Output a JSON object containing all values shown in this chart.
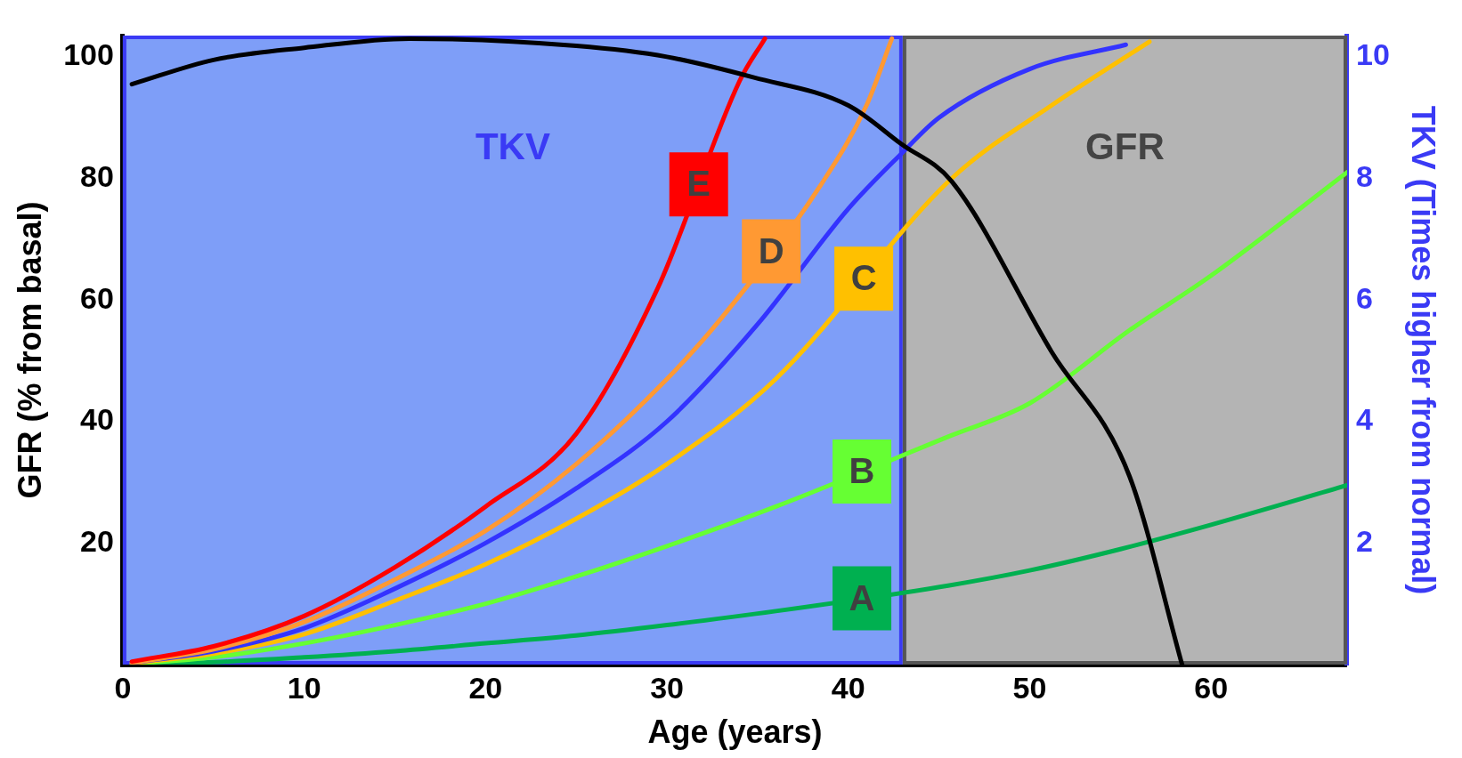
{
  "chart_data": {
    "type": "line",
    "xlabel": "Age (years)",
    "ylabel": "GFR (% from basal)",
    "y2label": "TKV (Times higher from normal)",
    "xlim": [
      0,
      67.5
    ],
    "xticks": [
      0,
      10,
      20,
      30,
      40,
      50,
      60
    ],
    "ylim": [
      0,
      103.5
    ],
    "yticks": [
      20,
      40,
      60,
      80,
      100
    ],
    "y2lim": [
      0,
      10.35
    ],
    "y2ticks": [
      2,
      4,
      6,
      8,
      10
    ],
    "legend": false,
    "marker": "none",
    "line_style": "solid",
    "bands": [
      {
        "axis": "x",
        "from": 0,
        "to": 43,
        "label": "TKV",
        "color": "#7e9ef8"
      },
      {
        "axis": "x",
        "from": 43,
        "to": 67.5,
        "label": "GFR",
        "color": "#b4b4b4"
      }
    ],
    "series": [
      {
        "color": "#000000",
        "x": [
          0.5,
          5,
          10,
          15.8,
          25,
          30,
          34.8,
          40,
          42.9,
          45.7,
          51.2,
          55.5,
          58.4
        ],
        "values": [
          95.5,
          99.5,
          101.5,
          103,
          101.8,
          100,
          96.6,
          92,
          85.7,
          79.5,
          51.5,
          31,
          0
        ]
      },
      {
        "name": "E",
        "color": "#ff0000",
        "axis": "y2",
        "x": [
          0.5,
          5,
          10,
          15,
          20,
          25,
          29.5,
          34,
          35.4
        ],
        "values": [
          0.05,
          0.3,
          0.8,
          1.6,
          2.6,
          3.8,
          6.2,
          9.6,
          10.3
        ]
      },
      {
        "name": "D",
        "color": "#ff9933",
        "axis": "y2",
        "x": [
          0.5,
          5,
          10,
          15,
          20,
          25,
          30,
          33,
          38.5,
          41,
          42.4
        ],
        "values": [
          0.03,
          0.25,
          0.7,
          1.4,
          2.2,
          3.3,
          4.7,
          5.7,
          7.9,
          9.2,
          10.3
        ]
      },
      {
        "color": "#3333ff",
        "axis": "y2",
        "x": [
          0.5,
          5,
          10,
          15,
          20,
          25,
          30,
          35,
          40,
          42.9,
          45,
          50,
          55.3
        ],
        "values": [
          0.03,
          0.22,
          0.6,
          1.25,
          2.0,
          2.9,
          4.0,
          5.6,
          7.5,
          8.4,
          9.0,
          9.8,
          10.2
        ]
      },
      {
        "name": "C",
        "color": "#ffc000",
        "axis": "y2",
        "x": [
          0.5,
          5,
          10,
          15,
          20,
          25,
          30,
          36,
          45.7,
          51.2,
          56.6
        ],
        "values": [
          0.02,
          0.18,
          0.5,
          1.05,
          1.65,
          2.4,
          3.3,
          4.7,
          8.0,
          9.2,
          10.25
        ]
      },
      {
        "name": "B",
        "color": "#66ff33",
        "axis": "y2",
        "x": [
          0.5,
          5,
          10,
          15,
          20,
          25,
          30,
          36,
          45.5,
          50,
          55.5,
          60,
          67.5
        ],
        "values": [
          0.01,
          0.12,
          0.35,
          0.65,
          1.0,
          1.45,
          1.95,
          2.6,
          3.75,
          4.3,
          5.5,
          6.4,
          8.1
        ]
      },
      {
        "name": "A",
        "color": "#00b050",
        "axis": "y2",
        "x": [
          0.5,
          5,
          10,
          15,
          20,
          25,
          30,
          36,
          45.5,
          50,
          55,
          60,
          67.5
        ],
        "values": [
          0.01,
          0.04,
          0.12,
          0.22,
          0.35,
          0.48,
          0.65,
          0.88,
          1.3,
          1.55,
          1.9,
          2.3,
          2.95
        ]
      }
    ]
  }
}
